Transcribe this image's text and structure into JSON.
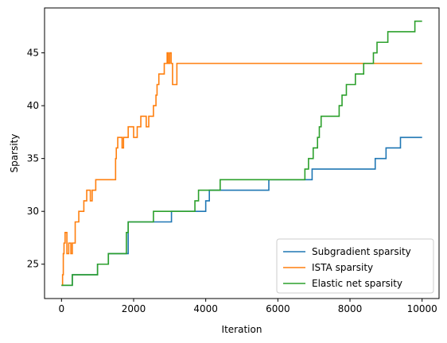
{
  "chart_data": {
    "type": "line",
    "title": "",
    "xlabel": "Iteration",
    "ylabel": "Sparsity",
    "xlim": [
      -470,
      10470
    ],
    "ylim": [
      21.75,
      49.25
    ],
    "xticks": [
      0,
      2000,
      4000,
      6000,
      8000,
      10000
    ],
    "yticks": [
      25,
      30,
      35,
      40,
      45
    ],
    "grid": false,
    "legend_position": "bottom-right",
    "series": [
      {
        "name": "Subgradient sparsity",
        "color": "#1f77b4",
        "step": true,
        "points": [
          [
            0,
            23
          ],
          [
            300,
            24
          ],
          [
            1000,
            25
          ],
          [
            1300,
            26
          ],
          [
            1850,
            29
          ],
          [
            3050,
            30
          ],
          [
            4000,
            31
          ],
          [
            4100,
            32
          ],
          [
            5750,
            33
          ],
          [
            6800,
            33
          ],
          [
            6950,
            34
          ],
          [
            8700,
            35
          ],
          [
            9000,
            36
          ],
          [
            9400,
            37
          ],
          [
            10000,
            37
          ]
        ]
      },
      {
        "name": "ISTA sparsity",
        "color": "#ff7f0e",
        "step": true,
        "points": [
          [
            0,
            23
          ],
          [
            30,
            24
          ],
          [
            50,
            26
          ],
          [
            70,
            27
          ],
          [
            100,
            28
          ],
          [
            150,
            26
          ],
          [
            200,
            27
          ],
          [
            260,
            26
          ],
          [
            300,
            27
          ],
          [
            380,
            29
          ],
          [
            480,
            30
          ],
          [
            620,
            31
          ],
          [
            700,
            32
          ],
          [
            800,
            31
          ],
          [
            850,
            32
          ],
          [
            950,
            33
          ],
          [
            1500,
            35
          ],
          [
            1520,
            36
          ],
          [
            1560,
            37
          ],
          [
            1680,
            36
          ],
          [
            1720,
            37
          ],
          [
            1850,
            38
          ],
          [
            2000,
            37
          ],
          [
            2100,
            38
          ],
          [
            2200,
            39
          ],
          [
            2350,
            38
          ],
          [
            2420,
            39
          ],
          [
            2550,
            40
          ],
          [
            2620,
            41
          ],
          [
            2650,
            42
          ],
          [
            2700,
            43
          ],
          [
            2850,
            44
          ],
          [
            2930,
            45
          ],
          [
            2960,
            44
          ],
          [
            3000,
            45
          ],
          [
            3040,
            44
          ],
          [
            3080,
            42
          ],
          [
            3200,
            44
          ],
          [
            10000,
            44
          ]
        ]
      },
      {
        "name": "Elastic net sparsity",
        "color": "#2ca02c",
        "step": true,
        "points": [
          [
            0,
            23
          ],
          [
            300,
            24
          ],
          [
            1000,
            25
          ],
          [
            1300,
            26
          ],
          [
            1800,
            28
          ],
          [
            1850,
            29
          ],
          [
            2550,
            30
          ],
          [
            3700,
            31
          ],
          [
            3800,
            32
          ],
          [
            4400,
            33
          ],
          [
            6750,
            34
          ],
          [
            6850,
            35
          ],
          [
            6980,
            36
          ],
          [
            7100,
            37
          ],
          [
            7150,
            38
          ],
          [
            7200,
            39
          ],
          [
            7700,
            40
          ],
          [
            7780,
            41
          ],
          [
            7900,
            42
          ],
          [
            8150,
            43
          ],
          [
            8380,
            44
          ],
          [
            8650,
            45
          ],
          [
            8750,
            46
          ],
          [
            9050,
            47
          ],
          [
            9800,
            48
          ],
          [
            10000,
            48
          ]
        ]
      }
    ]
  }
}
